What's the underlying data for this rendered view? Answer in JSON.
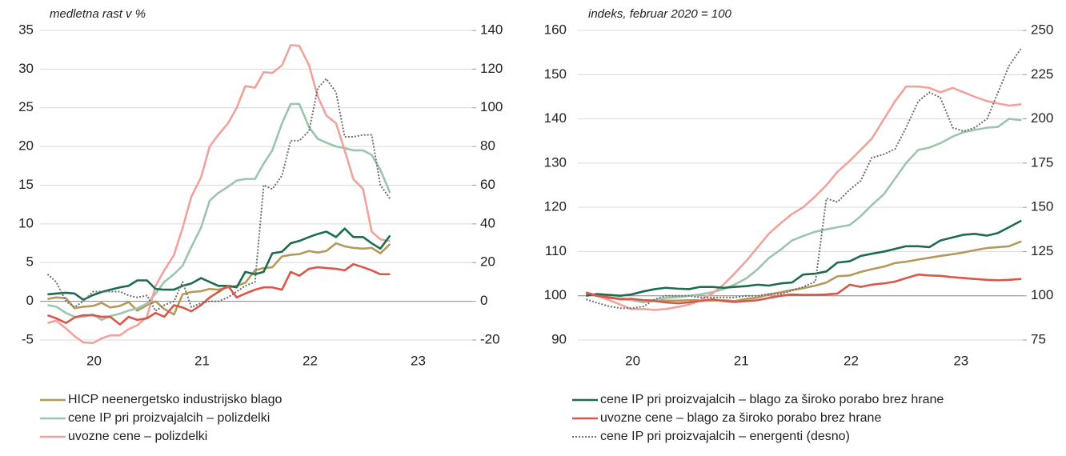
{
  "chart_data": [
    {
      "type": "line",
      "subtitle": "medletna rast v %",
      "x": [
        2020,
        2020.08,
        2020.17,
        2020.25,
        2020.33,
        2020.42,
        2020.5,
        2020.58,
        2020.67,
        2020.75,
        2020.83,
        2020.92,
        2021,
        2021.08,
        2021.17,
        2021.25,
        2021.33,
        2021.42,
        2021.5,
        2021.58,
        2021.67,
        2021.75,
        2021.83,
        2021.92,
        2022,
        2022.08,
        2022.17,
        2022.25,
        2022.33,
        2022.42,
        2022.5,
        2022.58,
        2022.67,
        2022.75,
        2022.83,
        2022.92,
        2023,
        2023.08,
        2023.17
      ],
      "xlim": [
        2019.93,
        2023.93
      ],
      "xticks": [
        {
          "value": 2020.43,
          "label": "20"
        },
        {
          "value": 2021.43,
          "label": "21"
        },
        {
          "value": 2022.43,
          "label": "22"
        },
        {
          "value": 2023.43,
          "label": "23"
        }
      ],
      "ylim": [
        -5,
        35
      ],
      "yticks": [
        -5,
        0,
        5,
        10,
        15,
        20,
        25,
        30,
        35
      ],
      "y2lim": [
        -20,
        140
      ],
      "y2ticks": [
        -20,
        0,
        20,
        40,
        60,
        80,
        100,
        120,
        140
      ],
      "baseline": 0,
      "grid": true,
      "series": [
        {
          "name": "HICP neenergetsko industrijsko blago",
          "color": "#b49a5a",
          "values": [
            0.3,
            0.5,
            0.4,
            -0.9,
            -0.7,
            -0.6,
            -0.2,
            -0.8,
            -0.6,
            -0.1,
            -1.2,
            -0.5,
            0.0,
            -1.0,
            -1.7,
            0.9,
            1.2,
            1.3,
            1.6,
            1.5,
            1.8,
            2.0,
            2.4,
            4.0,
            4.3,
            4.4,
            5.8,
            6.0,
            6.1,
            6.5,
            6.3,
            6.5,
            7.5,
            7.1,
            6.9,
            6.8,
            6.9,
            6.2,
            7.4
          ]
        },
        {
          "name": "cene IP pri proizvajalcih – polizdelki",
          "color": "#9dc4ad",
          "values": [
            -0.5,
            -0.7,
            -1.5,
            -2.0,
            -2.0,
            -1.7,
            -2.4,
            -1.9,
            -1.6,
            -1.2,
            -0.9,
            -0.3,
            1.0,
            2.5,
            3.5,
            4.6,
            7.0,
            9.5,
            13.0,
            14.0,
            14.8,
            15.6,
            15.8,
            15.8,
            17.8,
            19.5,
            23.0,
            25.5,
            25.5,
            22.5,
            21.0,
            20.5,
            20.0,
            19.8,
            19.5,
            19.5,
            18.9,
            17.0,
            14.0
          ]
        },
        {
          "name": "uvozne cene – polizdelki",
          "color": "#f0a39c",
          "values": [
            -2.8,
            -2.5,
            -3.5,
            -4.5,
            -5.3,
            -5.4,
            -4.8,
            -4.4,
            -4.4,
            -3.6,
            -3.1,
            -2.0,
            2.0,
            4.0,
            6.0,
            9.5,
            13.5,
            16.0,
            20.0,
            21.5,
            23.0,
            25.0,
            27.8,
            27.6,
            29.6,
            29.5,
            30.5,
            33.1,
            33.0,
            30.5,
            26.5,
            24.0,
            23.0,
            19.5,
            15.8,
            14.5,
            9.0,
            8.0,
            7.8
          ]
        },
        {
          "name": "cene IP pri proizvajalcih – blago za široko porabo brez hrane",
          "color": "#1e6b4f",
          "values": [
            0.9,
            1.0,
            1.1,
            1.0,
            0.2,
            0.8,
            1.2,
            1.5,
            1.8,
            2.0,
            2.7,
            2.7,
            1.6,
            1.5,
            1.5,
            2.0,
            2.3,
            3.0,
            2.5,
            2.0,
            2.0,
            1.8,
            3.8,
            3.5,
            3.8,
            6.2,
            6.4,
            7.5,
            7.8,
            8.3,
            8.7,
            9.0,
            8.3,
            9.4,
            8.3,
            8.3,
            7.5,
            6.8,
            8.5
          ]
        },
        {
          "name": "uvozne cene – blago za široko porabo brez hrane",
          "color": "#d9574a",
          "values": [
            -1.8,
            -2.2,
            -2.8,
            -2.1,
            -1.8,
            -1.8,
            -2.0,
            -2.0,
            -3.0,
            -2.0,
            -2.4,
            -2.2,
            -1.5,
            -2.0,
            -0.5,
            -0.8,
            -1.3,
            -0.5,
            0.5,
            1.2,
            2.0,
            0.5,
            1.0,
            1.5,
            1.8,
            1.8,
            1.5,
            3.8,
            3.3,
            4.2,
            4.4,
            4.3,
            4.2,
            4.0,
            4.8,
            4.4,
            4.0,
            3.5,
            3.5
          ]
        },
        {
          "name": "cene IP pri proizvajalcih – energenti (desno)",
          "color": "#6e6e6e",
          "style": "dotted",
          "axis": "y2",
          "values": [
            14,
            10,
            0,
            -3,
            0,
            5,
            5,
            5,
            5,
            3,
            2,
            3,
            -5,
            -2,
            0,
            10,
            -3,
            -1,
            0,
            0,
            2,
            5,
            8,
            10,
            60,
            58,
            65,
            83,
            83,
            88,
            110,
            115,
            108,
            85,
            85,
            86,
            86,
            60,
            53
          ]
        }
      ]
    },
    {
      "type": "line",
      "subtitle": "indeks, februar 2020 = 100",
      "x": [
        2020,
        2020.08,
        2020.17,
        2020.25,
        2020.33,
        2020.42,
        2020.5,
        2020.58,
        2020.67,
        2020.75,
        2020.83,
        2020.92,
        2021,
        2021.08,
        2021.17,
        2021.25,
        2021.33,
        2021.42,
        2021.5,
        2021.58,
        2021.67,
        2021.75,
        2021.83,
        2021.92,
        2022,
        2022.08,
        2022.17,
        2022.25,
        2022.33,
        2022.42,
        2022.5,
        2022.58,
        2022.67,
        2022.75,
        2022.83,
        2022.92,
        2023,
        2023.08,
        2023.17
      ],
      "xlim": [
        2019.94,
        2023.18
      ],
      "xticks": [
        {
          "value": 2020.34,
          "label": "20"
        },
        {
          "value": 2021.13,
          "label": "21"
        },
        {
          "value": 2021.93,
          "label": "22"
        },
        {
          "value": 2022.73,
          "label": "23"
        }
      ],
      "ylim": [
        90,
        160
      ],
      "yticks": [
        90,
        100,
        110,
        120,
        130,
        140,
        150,
        160
      ],
      "y2lim": [
        75,
        250
      ],
      "y2ticks": [
        75,
        100,
        125,
        150,
        175,
        200,
        225,
        250
      ],
      "baseline": 100,
      "grid": true,
      "series": [
        {
          "color": "#b49a5a",
          "values": [
            100.3,
            100,
            99.6,
            99.4,
            99.2,
            99,
            99,
            98.9,
            98.9,
            99,
            99,
            98.9,
            99,
            98.8,
            99.3,
            99.6,
            100.3,
            100.8,
            101.3,
            101.7,
            102.3,
            103,
            104.4,
            104.6,
            105.4,
            106,
            106.6,
            107.4,
            107.7,
            108.2,
            108.6,
            109,
            109.4,
            109.8,
            110.3,
            110.8,
            111,
            111.2,
            112.3
          ]
        },
        {
          "color": "#9dc4ad",
          "values": [
            100.5,
            100,
            99.5,
            99.3,
            99,
            98.5,
            99,
            99.5,
            99.7,
            100,
            100.3,
            100.8,
            101.5,
            102.5,
            104,
            106,
            108.5,
            110.5,
            112.5,
            113.5,
            114.5,
            115,
            115.5,
            116,
            118,
            120.5,
            123,
            126.5,
            130,
            133,
            133.5,
            134.5,
            136,
            137,
            137.5,
            138,
            138.2,
            140,
            139.7
          ]
        },
        {
          "color": "#f0a39c",
          "values": [
            100.8,
            100,
            99,
            98,
            97,
            97,
            96.8,
            97,
            97.5,
            98,
            99,
            100.5,
            102.5,
            105,
            108,
            111,
            114,
            116.5,
            118.5,
            120,
            122.5,
            125,
            128,
            130.5,
            133,
            135.5,
            140,
            144,
            147.3,
            147.3,
            147,
            146,
            147,
            146,
            145,
            144,
            143.5,
            143,
            143.3
          ]
        },
        {
          "color": "#1e6b4f",
          "values": [
            100,
            100.4,
            100.2,
            100,
            100.3,
            101,
            101.5,
            101.8,
            101.6,
            101.5,
            102,
            102,
            101.8,
            102,
            102.2,
            102.5,
            102.3,
            102.8,
            103,
            104.8,
            105,
            105.5,
            107.5,
            107.8,
            109,
            109.5,
            110,
            110.6,
            111.2,
            111.2,
            111,
            112.5,
            113.2,
            113.8,
            114,
            113.6,
            114.2,
            115.5,
            117
          ]
        },
        {
          "color": "#d9574a",
          "values": [
            100.7,
            100,
            99.6,
            99.2,
            99.3,
            99,
            98.8,
            98.5,
            98.3,
            98.5,
            98.8,
            99.2,
            98.8,
            98.6,
            98.8,
            99,
            99.5,
            100,
            100.3,
            100.2,
            100.2,
            100.3,
            100.5,
            102.5,
            102,
            102.5,
            102.8,
            103.2,
            104,
            104.8,
            104.6,
            104.5,
            104.2,
            104,
            103.8,
            103.6,
            103.5,
            103.6,
            103.8
          ]
        },
        {
          "color": "#6e6e6e",
          "style": "dotted",
          "axis": "y2",
          "values": [
            98,
            96,
            94,
            93,
            93,
            94,
            98,
            100,
            100,
            100,
            99,
            99,
            99,
            99,
            100,
            100,
            101,
            101,
            103,
            105,
            108,
            155,
            153,
            160,
            165,
            178,
            180,
            183,
            195,
            210,
            215,
            212,
            195,
            193,
            195,
            200,
            215,
            230,
            240
          ]
        }
      ]
    }
  ]
}
